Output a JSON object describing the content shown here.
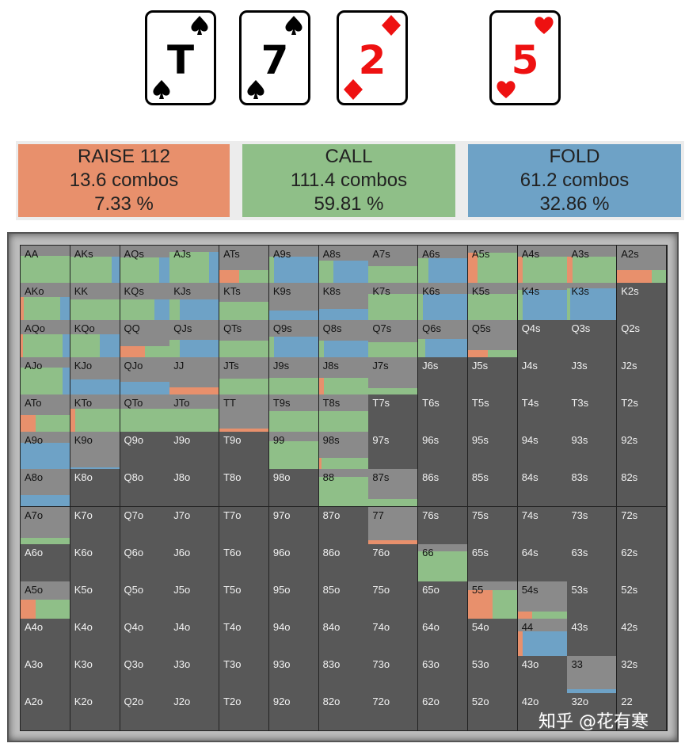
{
  "board": [
    {
      "rank": "T",
      "suit": "spade",
      "color": "#000000"
    },
    {
      "rank": "7",
      "suit": "spade",
      "color": "#000000"
    },
    {
      "rank": "2",
      "suit": "diamond",
      "color": "#ee1111"
    }
  ],
  "turn": {
    "rank": "5",
    "suit": "heart",
    "color": "#ee1111"
  },
  "summary": [
    {
      "action": "RAISE 112",
      "combos": "13.6 combos",
      "percent": "7.33 %",
      "color": "#e8906c"
    },
    {
      "action": "CALL",
      "combos": "111.4 combos",
      "percent": "59.81 %",
      "color": "#8fbf88"
    },
    {
      "action": "FOLD",
      "combos": "61.2 combos",
      "percent": "32.86 %",
      "color": "#6ea2c6"
    }
  ],
  "colors": {
    "raise": "#e8906c",
    "call": "#8fbf88",
    "fold": "#6ea2c6",
    "empty": "#585858",
    "light": "#8a8a8a"
  },
  "matrix_ranks": [
    "A",
    "K",
    "Q",
    "J",
    "T",
    "9",
    "8",
    "7",
    "6",
    "5",
    "4",
    "3",
    "2"
  ],
  "hands": {
    "AA": [
      0.72,
      0,
      1,
      0
    ],
    "AKs": [
      0.7,
      0,
      0.85,
      0.15
    ],
    "AQs": [
      0.68,
      0,
      0.8,
      0.2
    ],
    "AJs": [
      0.82,
      0,
      0.8,
      0.2
    ],
    "ATs": [
      0.35,
      0.4,
      0.6,
      0
    ],
    "A9s": [
      0.7,
      0,
      0.1,
      0.9
    ],
    "A8s": [
      0.6,
      0,
      0.3,
      0.7
    ],
    "A7s": [
      0.45,
      0,
      1,
      0
    ],
    "A6s": [
      0.65,
      0,
      0.2,
      0.8
    ],
    "A5s": [
      0.8,
      0.2,
      0.8,
      0
    ],
    "A4s": [
      0.7,
      0.1,
      0.9,
      0
    ],
    "A3s": [
      0.7,
      0.1,
      0.9,
      0
    ],
    "A2s": [
      0.35,
      0.7,
      0.3,
      0
    ],
    "AKo": [
      0.62,
      0.06,
      0.74,
      0.2
    ],
    "KK": [
      0.55,
      0,
      1,
      0
    ],
    "KQs": [
      0.55,
      0,
      0.7,
      0.3
    ],
    "KJs": [
      0.55,
      0,
      0.2,
      0.8
    ],
    "KTs": [
      0.5,
      0,
      1,
      0
    ],
    "K9s": [
      0.25,
      0,
      0,
      1
    ],
    "K8s": [
      0.3,
      0,
      0,
      1
    ],
    "K7s": [
      0.7,
      0,
      1,
      0
    ],
    "K6s": [
      0.7,
      0,
      0.1,
      0.9
    ],
    "K5s": [
      0.7,
      0,
      1,
      0
    ],
    "K4s": [
      0.8,
      0,
      0.1,
      0.9
    ],
    "K3s": [
      0.85,
      0,
      0.05,
      0.95
    ],
    "AQo": [
      0.62,
      0.05,
      0.8,
      0.15
    ],
    "KQo": [
      0.62,
      0,
      0.6,
      0.4
    ],
    "QQ": [
      0.3,
      0.5,
      0.5,
      0
    ],
    "QJs": [
      0.48,
      0,
      0.2,
      0.8
    ],
    "QTs": [
      0.45,
      0,
      1,
      0
    ],
    "Q9s": [
      0.55,
      0,
      0.1,
      0.9
    ],
    "Q8s": [
      0.45,
      0,
      0.1,
      0.9
    ],
    "Q7s": [
      0.4,
      0,
      1,
      0
    ],
    "Q6s": [
      0.5,
      0,
      0.15,
      0.85
    ],
    "Q5s": [
      0.2,
      0.4,
      0.6,
      0
    ],
    "AJo": [
      0.72,
      0,
      0.85,
      0.15
    ],
    "KJo": [
      0.4,
      0,
      0,
      1
    ],
    "QJo": [
      0.35,
      0,
      0,
      1
    ],
    "JJ": [
      0.2,
      1,
      0,
      0
    ],
    "JTs": [
      0.42,
      0,
      1,
      0
    ],
    "J9s": [
      0.45,
      0,
      1,
      0
    ],
    "J8s": [
      0.45,
      0.1,
      0.9,
      0
    ],
    "J7s": [
      0.18,
      0,
      1,
      0
    ],
    "ATo": [
      0.45,
      0.3,
      0.7,
      0
    ],
    "KTo": [
      0.62,
      0.1,
      0.9,
      0
    ],
    "QTo": [
      0.62,
      0,
      1,
      0
    ],
    "JTo": [
      0.62,
      0,
      1,
      0
    ],
    "TT": [
      0.1,
      1,
      0,
      0
    ],
    "T9s": [
      0.55,
      0,
      1,
      0
    ],
    "T8s": [
      0.55,
      0,
      1,
      0
    ],
    "A9o": [
      0.7,
      0,
      0,
      1
    ],
    "K9o": [
      0.05,
      0,
      0,
      1
    ],
    "99": [
      0.75,
      0,
      1,
      0
    ],
    "98s": [
      0.3,
      0.06,
      0.94,
      0
    ],
    "A8o": [
      0.3,
      0,
      0,
      1
    ],
    "88": [
      0.8,
      0,
      1,
      0
    ],
    "87s": [
      0.2,
      0,
      1,
      0
    ],
    "A7o": [
      0.15,
      0,
      1,
      0
    ],
    "77": [
      0.1,
      1,
      0,
      0
    ],
    "66": [
      0.8,
      0,
      1,
      0
    ],
    "A5o": [
      0.5,
      0.3,
      0.7,
      0
    ],
    "55": [
      0.75,
      0.5,
      0.5,
      0
    ],
    "54s": [
      0.18,
      0.3,
      0.7,
      0
    ],
    "44": [
      0.65,
      0.1,
      0,
      0.9
    ],
    "33": [
      0.1,
      0,
      0,
      1
    ]
  },
  "light_cells": [
    "AA",
    "KK",
    "QQ",
    "JJ",
    "TT",
    "99",
    "88",
    "77",
    "66",
    "55",
    "44",
    "33",
    "22"
  ],
  "watermark": "知乎 @花有寒"
}
